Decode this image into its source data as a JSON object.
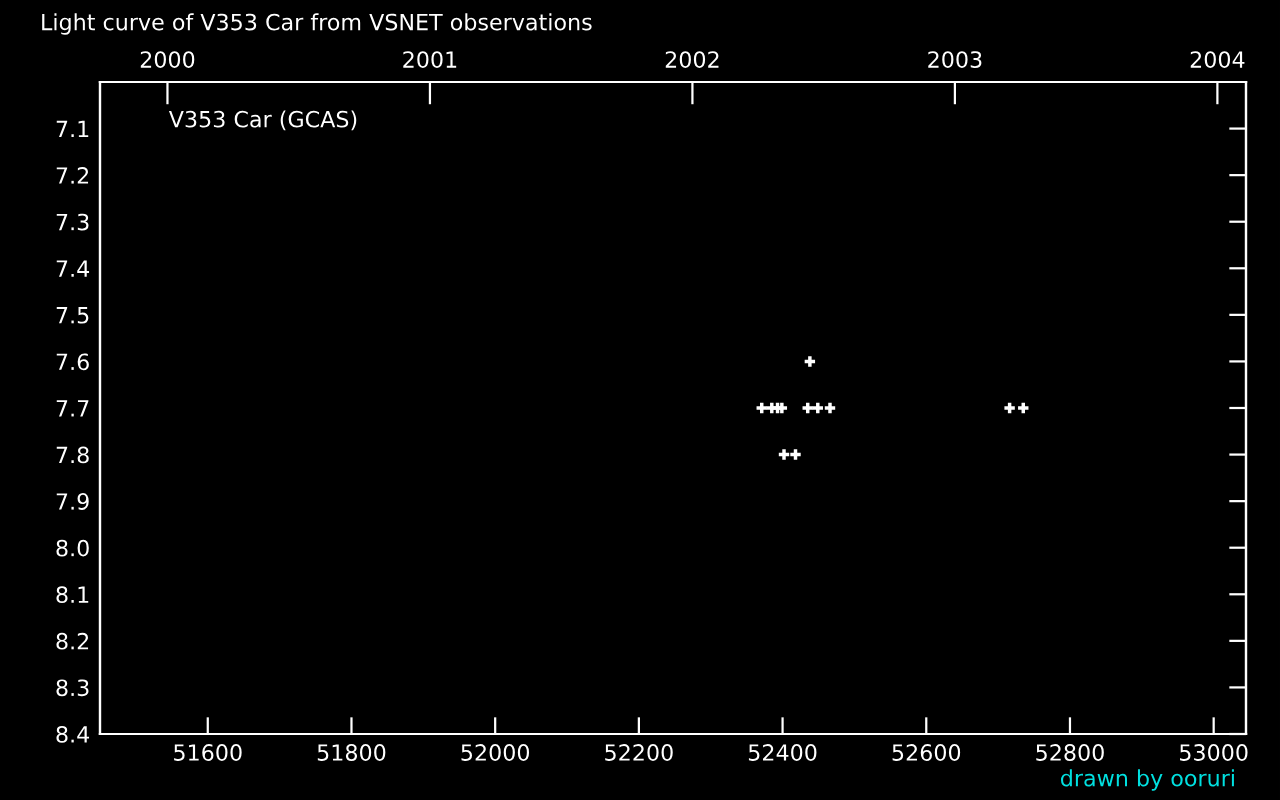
{
  "chart_data": {
    "type": "scatter",
    "title": "Light curve of V353 Car from VSNET observations",
    "annotations": [
      "V353 Car (GCAS)",
      "drawn by ooruri"
    ],
    "x": [
      52371,
      52385,
      52393,
      52399,
      52435,
      52449,
      52466,
      52716,
      52735,
      52438,
      52402,
      52418
    ],
    "values": [
      7.7,
      7.7,
      7.7,
      7.7,
      7.7,
      7.7,
      7.7,
      7.7,
      7.7,
      7.6,
      7.8,
      7.8
    ],
    "color": "#ffffff",
    "marker": "cross",
    "xlim": [
      51450,
      53045
    ],
    "ylim": [
      8.4,
      7.0
    ],
    "xticks": [
      51600,
      51800,
      52000,
      52200,
      52400,
      52600,
      52800,
      53000
    ],
    "yticks": [
      7.1,
      7.2,
      7.3,
      7.4,
      7.5,
      7.6,
      7.7,
      7.8,
      7.9,
      {
        "value": 8.0,
        "label": "8.0"
      },
      8.1,
      8.2,
      8.3,
      8.4
    ],
    "x2lim": [
      1999.743,
      2004.109
    ],
    "x2ticks": [
      2000,
      2001,
      2002,
      2003,
      2004
    ],
    "grid": false,
    "legend": false
  }
}
